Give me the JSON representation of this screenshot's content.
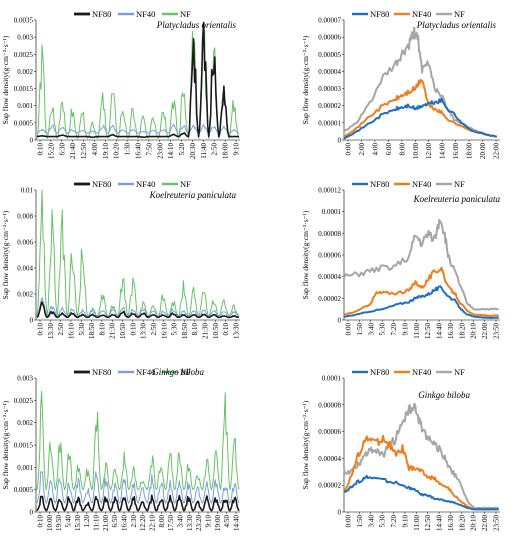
{
  "colors": {
    "NF80": "#1a1a1a",
    "NF40": "#7a9fd6",
    "NF": "#66c266",
    "NF80_daily": "#1f6fc1",
    "NF40_daily": "#f07d1a",
    "NF_daily": "#a6a6a6"
  },
  "chart_data": [
    {
      "type": "line",
      "panel": "left-top",
      "title": "Platycladus orientalis",
      "ylabel": "Sap flow density(g·cm⁻²·s⁻¹)",
      "ylim": [
        0,
        0.0035
      ],
      "yticks": [
        "0",
        "0.0005",
        "0.001",
        "0.0015",
        "0.002",
        "0.0025",
        "0.003",
        "0.0035"
      ],
      "xticks": [
        "0:10",
        "15:20",
        "6:30",
        "21:40",
        "12:50",
        "4:00",
        "19:10",
        "10:20",
        "1:30",
        "16:40",
        "7:50",
        "23:00",
        "14:10",
        "5:20",
        "20:30",
        "11:40",
        "2:50",
        "18:00",
        "9:10"
      ],
      "legend": [
        "NF80",
        "NF40",
        "NF"
      ],
      "legend_placement": "top",
      "series": [
        {
          "name": "NF80",
          "baseline": 0.0001,
          "peaks": [
            0.00012,
            0.0001,
            0.00015,
            0.0001,
            0.0001,
            8e-05,
            0.0001,
            0.00015,
            0.0001,
            0.0001,
            8e-05,
            0.0001,
            0.0001,
            0.00015,
            0.0002,
            0.0025,
            0.0028,
            0.0025,
            0.0015,
            0.0001
          ]
        },
        {
          "name": "NF40",
          "baseline": 0.0002,
          "peaks": [
            0.0003,
            0.0004,
            0.0004,
            0.0003,
            0.0003,
            0.00025,
            0.0004,
            0.0004,
            0.0003,
            0.0003,
            0.00025,
            0.0003,
            0.0003,
            0.0004,
            0.0004,
            0.0004,
            0.0004,
            0.0004,
            0.0004,
            0.0003
          ]
        },
        {
          "name": "NF",
          "baseline": 5e-05,
          "peaks": [
            0.0022,
            0.0009,
            0.0012,
            0.0008,
            0.0007,
            0.0005,
            0.0011,
            0.0013,
            0.0009,
            0.0008,
            0.0006,
            0.0007,
            0.0009,
            0.0012,
            0.0015,
            0.0029,
            0.0027,
            0.0024,
            0.0013,
            0.001
          ]
        }
      ]
    },
    {
      "type": "line",
      "panel": "left-middle",
      "title": "Koelreuteria paniculata",
      "ylabel": "Sap flow density(g·cm⁻²·s⁻¹)",
      "ylim": [
        0,
        0.01
      ],
      "yticks": [
        "0",
        "0.002",
        "0.004",
        "0.006",
        "0.008",
        "0.01"
      ],
      "xticks": [
        "0:10",
        "13:30",
        "2:50",
        "16:10",
        "5:30",
        "18:50",
        "8:10",
        "21:30",
        "10:50",
        "0:10",
        "13:30",
        "2:50",
        "16:10",
        "5:30",
        "18:50",
        "8:10",
        "21:30",
        "10:50",
        "0:10",
        "13:30"
      ],
      "legend": [
        "NF80",
        "NF40",
        "NF"
      ],
      "legend_placement": "top",
      "series": [
        {
          "name": "NF80",
          "baseline": 0.0002,
          "peaks": [
            0.0012,
            0.0006,
            0.0005,
            0.0005,
            0.0004,
            0.0004,
            0.0004,
            0.0004,
            0.0006,
            0.0005,
            0.0005,
            0.0004,
            0.0004,
            0.0005,
            0.0004,
            0.0004,
            0.0004,
            0.0004,
            0.0003,
            0.0003
          ]
        },
        {
          "name": "NF40",
          "baseline": 0.0003,
          "peaks": [
            0.0015,
            0.001,
            0.0009,
            0.0008,
            0.0007,
            0.0007,
            0.0008,
            0.0008,
            0.0009,
            0.0008,
            0.0008,
            0.0007,
            0.0007,
            0.0008,
            0.0007,
            0.0007,
            0.0007,
            0.0007,
            0.0006,
            0.0006
          ]
        },
        {
          "name": "NF",
          "baseline": 0.0003,
          "peaks": [
            0.0083,
            0.0072,
            0.007,
            0.0045,
            0.005,
            0.0008,
            0.002,
            0.001,
            0.003,
            0.0028,
            0.0012,
            0.001,
            0.0018,
            0.0013,
            0.0024,
            0.0021,
            0.002,
            0.0016,
            0.0015,
            0.001
          ]
        }
      ]
    },
    {
      "type": "line",
      "panel": "left-bottom",
      "title": "Ginkgo biloba",
      "ylabel": "Sap flow density(g·cm⁻²·s⁻¹)",
      "ylim": [
        0,
        0.003
      ],
      "yticks": [
        "0",
        "0.0005",
        "0.001",
        "0.0015",
        "0.002",
        "0.0025",
        "0.003"
      ],
      "xticks": [
        "0:10",
        "10:00",
        "19:50",
        "5:40",
        "15:30",
        "1:20",
        "11:10",
        "21:00",
        "6:50",
        "16:40",
        "2:30",
        "12:20",
        "22:10",
        "8:00",
        "17:50",
        "3:40",
        "13:30",
        "23:20",
        "9:10",
        "19:00",
        "4:50",
        "14:40"
      ],
      "legend": [
        "NF80",
        "NF40",
        "NF"
      ],
      "legend_placement": "top",
      "series": [
        {
          "name": "NF80",
          "baseline": 3e-05,
          "peaks": [
            0.0003,
            0.0003,
            0.0003,
            0.0003,
            0.0003,
            0.0002,
            0.0003,
            0.0003,
            0.0003,
            0.0003,
            0.0003,
            0.0002,
            0.0003,
            0.0003,
            0.0003,
            0.0003,
            0.0003,
            0.0002,
            0.0003,
            0.0003,
            0.0003,
            0.0003
          ]
        },
        {
          "name": "NF40",
          "baseline": 0.0002,
          "peaks": [
            0.0008,
            0.0007,
            0.0008,
            0.0006,
            0.0007,
            0.0005,
            0.0008,
            0.0007,
            0.0006,
            0.0007,
            0.0006,
            0.0005,
            0.0007,
            0.0007,
            0.0006,
            0.0006,
            0.0006,
            0.0005,
            0.0006,
            0.0007,
            0.0006,
            0.0006
          ]
        },
        {
          "name": "NF",
          "baseline": 0.0005,
          "peaks": [
            0.0023,
            0.0015,
            0.0014,
            0.0012,
            0.001,
            0.0009,
            0.0021,
            0.001,
            0.0009,
            0.0012,
            0.0009,
            0.0007,
            0.0012,
            0.0011,
            0.0012,
            0.0013,
            0.001,
            0.0008,
            0.0011,
            0.0013,
            0.0024,
            0.0016
          ]
        }
      ]
    },
    {
      "type": "line",
      "panel": "right-top",
      "title": "Platycladus orientalis",
      "ylabel": "Sap flow density(g·cm⁻²·s⁻¹)",
      "ylim": [
        0,
        7e-05
      ],
      "yticks": [
        "0",
        "0.00001",
        "0.00002",
        "0.00003",
        "0.00004",
        "0.00005",
        "0.00006",
        "0.00007"
      ],
      "xticks": [
        "0:00",
        "2:00",
        "4:00",
        "6:00",
        "8:00",
        "10:00",
        "12:00",
        "14:00",
        "16:00",
        "18:00",
        "20:00",
        "22:00"
      ],
      "x_hours": [
        0,
        24
      ],
      "legend": [
        "NF80",
        "NF40",
        "NF"
      ],
      "legend_placement": "top",
      "series": [
        {
          "name": "NF80",
          "hours": [
            0,
            2,
            4,
            6,
            8,
            9,
            10,
            11,
            12,
            13,
            14,
            15,
            16,
            17,
            18,
            20,
            22,
            23.5
          ],
          "values": [
            1e-06,
            5e-06,
            1e-05,
            1.5e-05,
            1.8e-05,
            1.9e-05,
            2e-05,
            1.8e-05,
            2e-05,
            2.1e-05,
            2.2e-05,
            2.3e-05,
            1.8e-05,
            1.5e-05,
            1e-05,
            5e-06,
            3e-06,
            2e-06
          ]
        },
        {
          "name": "NF40",
          "hours": [
            0,
            2,
            4,
            6,
            8,
            9,
            10,
            11,
            12,
            13,
            14,
            15,
            16,
            17,
            18,
            20,
            22,
            23.5
          ],
          "values": [
            2e-06,
            7e-06,
            1.4e-05,
            2e-05,
            2.4e-05,
            2.6e-05,
            2.8e-05,
            3e-05,
            3.6e-05,
            2e-05,
            1.8e-05,
            1.6e-05,
            1.2e-05,
            1e-05,
            8e-06,
            5e-06,
            3e-06,
            2e-06
          ]
        },
        {
          "name": "NF",
          "hours": [
            0,
            2,
            4,
            6,
            8,
            9,
            10,
            10.7,
            11.3,
            12,
            13,
            14,
            15,
            16,
            17,
            18,
            20,
            22,
            23.5
          ],
          "values": [
            5e-06,
            1e-05,
            2.2e-05,
            3.6e-05,
            4.4e-05,
            5e-05,
            5.5e-05,
            6.2e-05,
            6.2e-05,
            4e-05,
            4.5e-05,
            3e-05,
            2.6e-05,
            1.8e-05,
            1.2e-05,
            1e-05,
            6e-06,
            3e-06,
            2e-06
          ]
        }
      ]
    },
    {
      "type": "line",
      "panel": "right-middle",
      "title": "Koelreuteria paniculata",
      "ylabel": "Sap flow density(g·cm⁻²·s⁻¹)",
      "ylim": [
        0,
        0.00012
      ],
      "yticks": [
        "0",
        "0.00002",
        "0.00004",
        "0.00006",
        "0.00008",
        "0.0001",
        "0.00012"
      ],
      "xticks": [
        "0:00",
        "1:50",
        "3:40",
        "5:30",
        "7:20",
        "9:10",
        "11:00",
        "12:50",
        "14:40",
        "16:30",
        "18:20",
        "20:10",
        "22:00",
        "23:50"
      ],
      "x_hours": [
        0,
        24
      ],
      "legend": [
        "NF80",
        "NF40",
        "NF"
      ],
      "legend_placement": "top",
      "series": [
        {
          "name": "NF80",
          "hours": [
            0,
            2,
            4,
            6,
            8,
            10,
            11,
            12,
            13,
            14,
            15,
            16,
            17,
            18,
            19,
            20,
            22,
            23.8
          ],
          "values": [
            3e-06,
            5e-06,
            8e-06,
            1e-05,
            1.4e-05,
            1.7e-05,
            2e-05,
            2.2e-05,
            2.4e-05,
            2.8e-05,
            3e-05,
            2.2e-05,
            1.8e-05,
            1e-05,
            5e-06,
            3e-06,
            2e-06,
            2e-06
          ]
        },
        {
          "name": "NF40",
          "hours": [
            0,
            2,
            4,
            5,
            6,
            8,
            10,
            11,
            12,
            13,
            14,
            15,
            16,
            17,
            18,
            19,
            20,
            22,
            23.8
          ],
          "values": [
            5e-06,
            8e-06,
            1.5e-05,
            2.5e-05,
            2.5e-05,
            2.5e-05,
            2.7e-05,
            3.5e-05,
            3e-05,
            3.8e-05,
            4.5e-05,
            4.8e-05,
            3e-05,
            2.5e-05,
            1.5e-05,
            8e-06,
            5e-06,
            4e-06,
            4e-06
          ]
        },
        {
          "name": "NF",
          "hours": [
            0,
            2,
            4,
            6,
            8,
            10,
            11,
            12,
            13,
            14,
            14.8,
            15.5,
            16,
            17,
            18,
            19,
            20,
            22,
            23.8
          ],
          "values": [
            4e-05,
            4.2e-05,
            4.5e-05,
            4.8e-05,
            5e-05,
            5.8e-05,
            7.8e-05,
            7e-05,
            8e-05,
            7.5e-05,
            9.5e-05,
            7.8e-05,
            6e-05,
            4.5e-05,
            3e-05,
            1.5e-05,
            1e-05,
            1e-05,
            1e-05
          ]
        }
      ]
    },
    {
      "type": "line",
      "panel": "right-bottom",
      "title": "Ginkgo biloba",
      "ylabel": "Sap flow density(g·cm⁻²·s⁻¹)",
      "ylim": [
        0,
        0.0001
      ],
      "yticks": [
        "0",
        "0.00002",
        "0.00004",
        "0.00006",
        "0.00008",
        "0.0001"
      ],
      "xticks": [
        "0:00",
        "1:50",
        "3:40",
        "5:30",
        "7:20",
        "9:10",
        "11:00",
        "12:50",
        "14:40",
        "16:30",
        "18:20",
        "20:10",
        "22:00",
        "23:50"
      ],
      "x_hours": [
        0,
        24
      ],
      "legend": [
        "NF80",
        "NF40",
        "NF"
      ],
      "legend_placement": "top",
      "series": [
        {
          "name": "NF80",
          "hours": [
            0,
            1,
            2,
            3,
            4,
            6,
            8,
            10,
            11,
            12,
            13,
            14,
            15,
            16,
            17,
            18,
            19,
            20,
            22,
            23.8
          ],
          "values": [
            1.5e-05,
            1.8e-05,
            2.2e-05,
            2.5e-05,
            2.6e-05,
            2.4e-05,
            2.2e-05,
            1.8e-05,
            1.6e-05,
            1.3e-05,
            1.2e-05,
            1e-05,
            9e-06,
            8e-06,
            7e-06,
            5e-06,
            3e-06,
            2e-06,
            2e-06,
            2e-06
          ]
        },
        {
          "name": "NF40",
          "hours": [
            0,
            1,
            2,
            3,
            4,
            5,
            6,
            7,
            8,
            9,
            10,
            11,
            12,
            13,
            14,
            15,
            16,
            17,
            18,
            19,
            20,
            22,
            23.8
          ],
          "values": [
            1.5e-05,
            2.5e-05,
            4e-05,
            5.2e-05,
            5.5e-05,
            5.2e-05,
            5.5e-05,
            5e-05,
            4.2e-05,
            4.8e-05,
            3.2e-05,
            3.3e-05,
            3e-05,
            2.6e-05,
            2.5e-05,
            2e-05,
            1.8e-05,
            1.2e-05,
            8e-06,
            4e-06,
            2e-06,
            2e-06,
            2e-06
          ]
        },
        {
          "name": "NF",
          "hours": [
            0,
            1,
            2,
            3,
            4,
            5,
            6,
            7,
            8,
            9,
            10,
            10.7,
            11.5,
            12,
            13,
            14,
            15,
            16,
            17,
            18,
            19,
            20,
            22,
            23.8
          ],
          "values": [
            3e-05,
            3e-05,
            3.5e-05,
            4e-05,
            4.8e-05,
            4.5e-05,
            4.2e-05,
            5e-05,
            5.5e-05,
            6.8e-05,
            7.5e-05,
            7.8e-05,
            7e-05,
            6.2e-05,
            5.5e-05,
            5e-05,
            4.5e-05,
            3.5e-05,
            2.8e-05,
            2e-05,
            8e-06,
            3e-06,
            3e-06,
            3e-06
          ]
        }
      ]
    }
  ]
}
